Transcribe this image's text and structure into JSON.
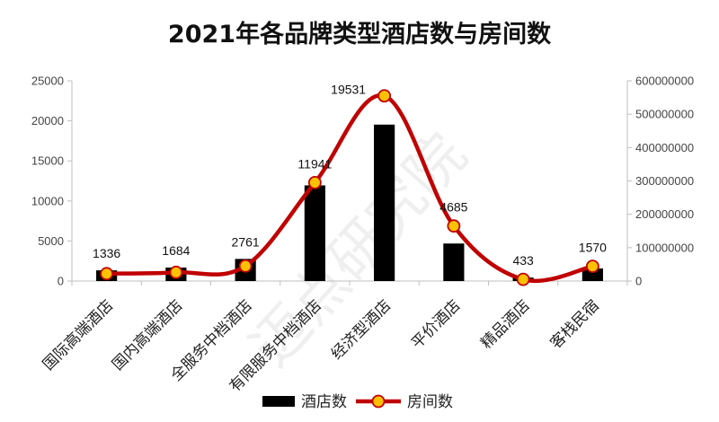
{
  "chart_data": {
    "type": "bar",
    "title": "2021年各品牌类型酒店数与房间数",
    "categories": [
      "国际高端酒店",
      "国内高端酒店",
      "全服务中档酒店",
      "有限服务中档酒店",
      "经济型酒店",
      "平价酒店",
      "精品酒店",
      "客栈民宿"
    ],
    "series": [
      {
        "name": "酒店数",
        "type": "bar",
        "axis": "left",
        "color": "#000000",
        "values": [
          1336,
          1684,
          2761,
          11941,
          19531,
          4685,
          433,
          1570
        ],
        "labels": [
          "1336",
          "1684",
          "2761",
          "11941",
          "19531",
          "4685",
          "433",
          "1570"
        ]
      },
      {
        "name": "房间数",
        "type": "line",
        "axis": "right",
        "color": "#c00000",
        "marker_color": "#ffc000",
        "values": [
          22000000,
          26000000,
          45000000,
          295000000,
          555000000,
          165000000,
          5000000,
          44000000
        ]
      }
    ],
    "y_left": {
      "min": 0,
      "max": 25000,
      "ticks": [
        0,
        5000,
        10000,
        15000,
        20000,
        25000
      ],
      "tick_labels": [
        "0",
        "5000",
        "10000",
        "15000",
        "20000",
        "25000"
      ]
    },
    "y_right": {
      "min": 0,
      "max": 600000000,
      "ticks": [
        0,
        100000000,
        200000000,
        300000000,
        400000000,
        500000000,
        600000000
      ],
      "tick_labels": [
        "0",
        "100000000",
        "200000000",
        "300000000",
        "400000000",
        "500000000",
        "600000000"
      ]
    },
    "grid": false,
    "legend_position": "bottom",
    "watermark": "迈点研究院"
  }
}
